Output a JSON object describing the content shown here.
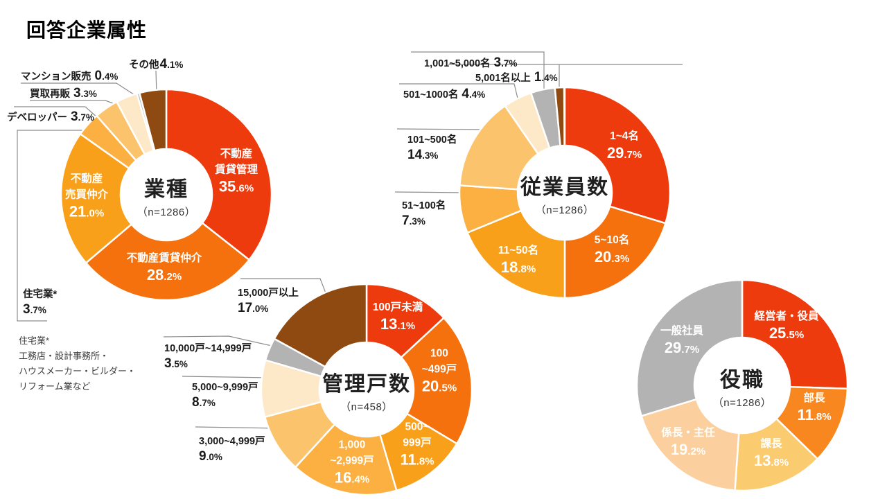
{
  "page": {
    "title": "回答企業属性",
    "background": "#FFFFFF",
    "leader_line_color": "#8C8C8C"
  },
  "footnote": {
    "lines": [
      "住宅業*",
      "工務店・設計事務所・",
      "ハウスメーカー・ビルダー・",
      "リフォーム業など"
    ]
  },
  "chart_data": [
    {
      "type": "pie",
      "subtype": "donut",
      "id": "industry",
      "title": "業種",
      "n_label": "（n=1286）",
      "slices": [
        {
          "label": "不動産賃貸管理",
          "value": 35.6
        },
        {
          "label": "不動産賃貸仲介",
          "value": 28.2
        },
        {
          "label": "不動産売買仲介",
          "value": 21.0
        },
        {
          "label": "住宅業*",
          "value": 3.7
        },
        {
          "label": "デベロッパー",
          "value": 3.7
        },
        {
          "label": "買取再販",
          "value": 3.3
        },
        {
          "label": "マンション販売",
          "value": 0.4
        },
        {
          "label": "その他",
          "value": 4.1
        }
      ],
      "colors": [
        "#EE3B0E",
        "#F4710D",
        "#F9A01B",
        "#FBB041",
        "#FBC46C",
        "#FDE9C8",
        "#B3B3B3",
        "#8F4A12"
      ]
    },
    {
      "type": "pie",
      "subtype": "donut",
      "id": "employees",
      "title": "従業員数",
      "n_label": "（n=1286）",
      "slices": [
        {
          "label": "1~4名",
          "value": 29.7
        },
        {
          "label": "5~10名",
          "value": 20.3
        },
        {
          "label": "11~50名",
          "value": 18.8
        },
        {
          "label": "51~100名",
          "value": 7.3
        },
        {
          "label": "101~500名",
          "value": 14.3
        },
        {
          "label": "501~1000名",
          "value": 4.4
        },
        {
          "label": "1,001~5,000名",
          "value": 3.7
        },
        {
          "label": "5,001名以上",
          "value": 1.4
        }
      ],
      "colors": [
        "#EE3B0E",
        "#F4710D",
        "#F9A01B",
        "#FBB041",
        "#FBC46C",
        "#FDE9C8",
        "#B3B3B3",
        "#8F4A12"
      ]
    },
    {
      "type": "pie",
      "subtype": "donut",
      "id": "managed-units",
      "title": "管理戸数",
      "n_label": "（n=458）",
      "slices": [
        {
          "label": "100戸未満",
          "value": 13.1
        },
        {
          "label": "100~499戸",
          "value": 20.5
        },
        {
          "label": "500~999戸",
          "value": 11.8
        },
        {
          "label": "1,000~2,999戸",
          "value": 16.4
        },
        {
          "label": "3,000~4,999戸",
          "value": 9.0
        },
        {
          "label": "5,000~9,999戸",
          "value": 8.7
        },
        {
          "label": "10,000戸~14,999戸",
          "value": 3.5
        },
        {
          "label": "15,000戸以上",
          "value": 17.0
        }
      ],
      "colors": [
        "#EE3B0E",
        "#F4710D",
        "#F9A01B",
        "#FBB041",
        "#FBC46C",
        "#FDE9C8",
        "#B3B3B3",
        "#8F4A12"
      ]
    },
    {
      "type": "pie",
      "subtype": "donut",
      "id": "position",
      "title": "役職",
      "n_label": "（n=1286）",
      "slices": [
        {
          "label": "経営者・役員",
          "value": 25.5
        },
        {
          "label": "部長",
          "value": 11.8
        },
        {
          "label": "課長",
          "value": 13.8
        },
        {
          "label": "係長・主任",
          "value": 19.2
        },
        {
          "label": "一般社員",
          "value": 29.7
        }
      ],
      "colors": [
        "#EE3B0E",
        "#F8871F",
        "#FBCB70",
        "#FCCF9E",
        "#B3B3B3"
      ]
    }
  ]
}
